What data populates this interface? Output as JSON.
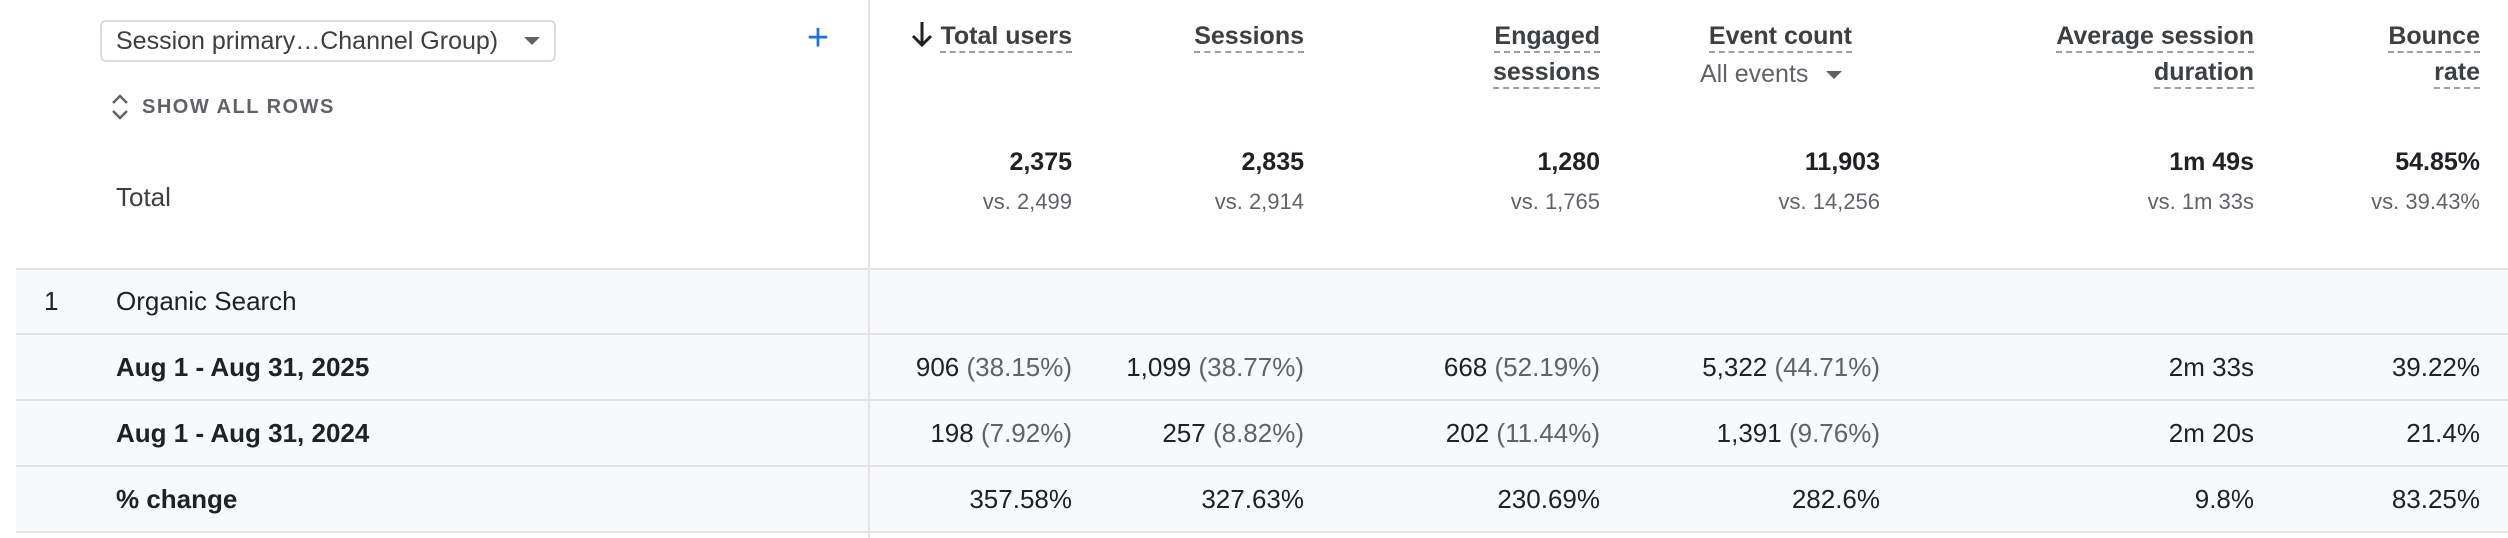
{
  "dimension": {
    "label": "Session primary…Channel Group)"
  },
  "show_all_rows": "SHOW ALL ROWS",
  "columns": {
    "total_users": "Total users",
    "sessions": "Sessions",
    "engaged_sessions_1": "Engaged",
    "engaged_sessions_2": "sessions",
    "event_count": "Event count",
    "event_filter": "All events",
    "avg_duration_1": "Average session",
    "avg_duration_2": "duration",
    "bounce_1": "Bounce",
    "bounce_2": "rate"
  },
  "total": {
    "label": "Total",
    "total_users": "2,375",
    "total_users_cmp": "vs. 2,499",
    "sessions": "2,835",
    "sessions_cmp": "vs. 2,914",
    "engaged_sessions": "1,280",
    "engaged_sessions_cmp": "vs. 1,765",
    "event_count": "11,903",
    "event_count_cmp": "vs. 14,256",
    "avg_duration": "1m 49s",
    "avg_duration_cmp": "vs. 1m 33s",
    "bounce_rate": "54.85%",
    "bounce_rate_cmp": "vs. 39.43%"
  },
  "group": {
    "index": "1",
    "label": "Organic Search"
  },
  "rows": [
    {
      "label": "Aug 1 - Aug 31, 2025",
      "total_users": "906",
      "total_users_pct": "(38.15%)",
      "sessions": "1,099",
      "sessions_pct": "(38.77%)",
      "engaged_sessions": "668",
      "engaged_sessions_pct": "(52.19%)",
      "event_count": "5,322",
      "event_count_pct": "(44.71%)",
      "avg_duration": "2m 33s",
      "bounce_rate": "39.22%"
    },
    {
      "label": "Aug 1 - Aug 31, 2024",
      "total_users": "198",
      "total_users_pct": "(7.92%)",
      "sessions": "257",
      "sessions_pct": "(8.82%)",
      "engaged_sessions": "202",
      "engaged_sessions_pct": "(11.44%)",
      "event_count": "1,391",
      "event_count_pct": "(9.76%)",
      "avg_duration": "2m 20s",
      "bounce_rate": "21.4%"
    },
    {
      "label": "% change",
      "total_users": "357.58%",
      "sessions": "327.63%",
      "engaged_sessions": "230.69%",
      "event_count": "282.6%",
      "avg_duration": "9.8%",
      "bounce_rate": "83.25%"
    }
  ]
}
